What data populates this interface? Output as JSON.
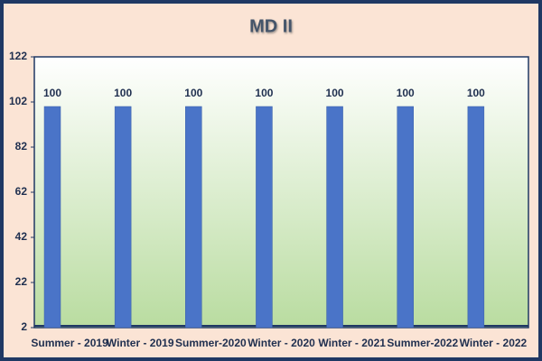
{
  "chart_data": {
    "type": "bar",
    "title": "MD II",
    "categories": [
      "Summer - 2019",
      "Winter - 2019",
      "Summer-2020",
      "Winter - 2020",
      "Winter - 2021",
      "Summer-2022",
      "Winter - 2022"
    ],
    "values": [
      100,
      100,
      100,
      100,
      100,
      100,
      100
    ],
    "color": "#4a74c8",
    "ylim": [
      2,
      122
    ],
    "yticks": [
      2,
      22,
      42,
      62,
      82,
      102,
      122
    ],
    "grid": false
  }
}
